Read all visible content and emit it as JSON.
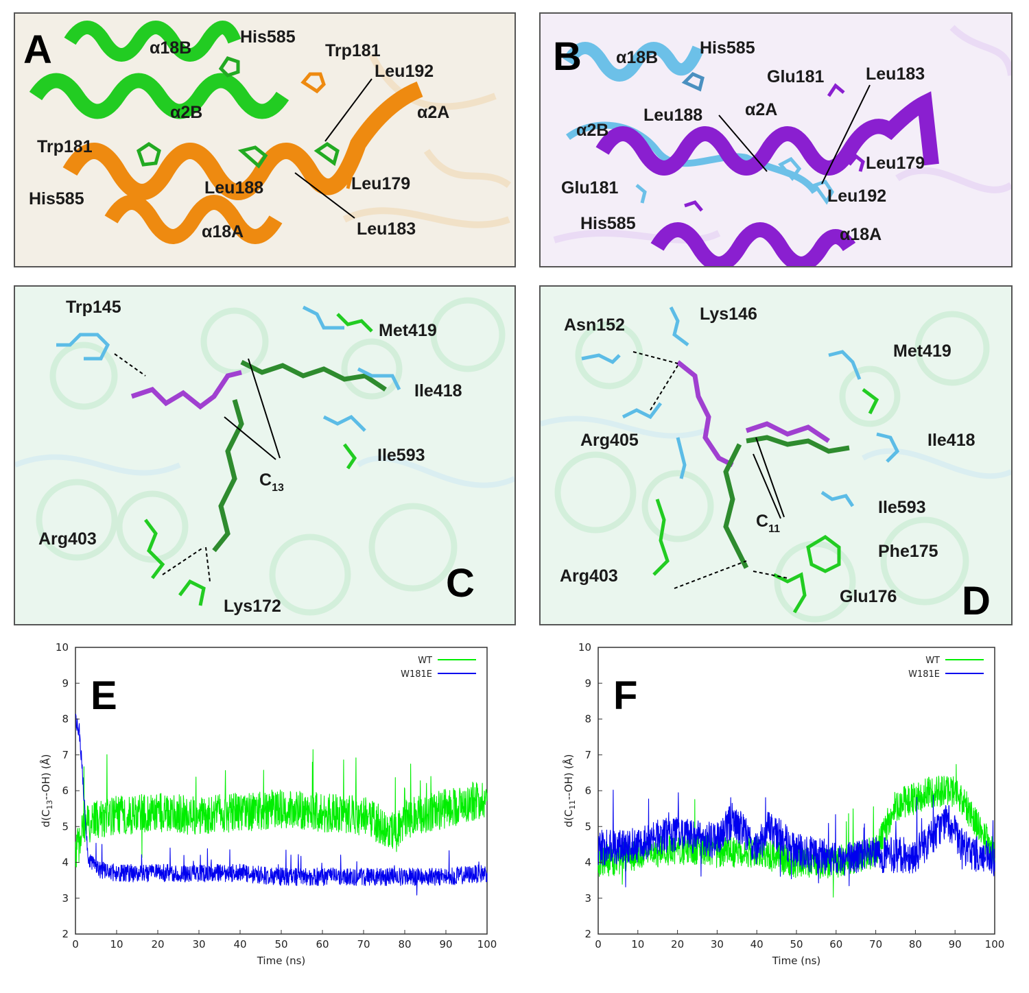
{
  "panels": {
    "A": {
      "letter": "A",
      "labels": [
        "α18B",
        "His585",
        "Trp181",
        "Leu192",
        "α2B",
        "α2A",
        "Trp181",
        "His585",
        "Leu188",
        "Leu179",
        "α18A",
        "Leu183"
      ],
      "colors": {
        "chainB": "#22cc22",
        "chainA": "#ee8a10",
        "bg": "#f3efe6"
      }
    },
    "B": {
      "letter": "B",
      "labels": [
        "α18B",
        "His585",
        "Glu181",
        "Leu183",
        "Leu188",
        "α2A",
        "α2B",
        "Leu179",
        "Glu181",
        "Leu192",
        "His585",
        "α18A"
      ],
      "colors": {
        "chainB": "#6cc0e8",
        "chainA": "#8a1fd0",
        "bg": "#f4eef8"
      }
    },
    "C": {
      "letter": "C",
      "labels": [
        "Trp145",
        "Met419",
        "Ile418",
        "Ile593",
        "Arg403",
        "Lys172"
      ],
      "carbon_label": {
        "main": "C",
        "sub": "13"
      },
      "colors": {
        "bg": "#eaf6ee"
      }
    },
    "D": {
      "letter": "D",
      "labels": [
        "Asn152",
        "Lys146",
        "Met419",
        "Arg405",
        "Ile418",
        "Ile593",
        "Phe175",
        "Arg403",
        "Glu176"
      ],
      "carbon_label": {
        "main": "C",
        "sub": "11"
      },
      "colors": {
        "bg": "#eaf6ee"
      }
    }
  },
  "chart_data": [
    {
      "panel": "E",
      "letter": "E",
      "type": "line",
      "xlabel": "Time (ns)",
      "ylabel": "d(C13--OH) (Å)",
      "xlim": [
        0,
        100
      ],
      "ylim": [
        2,
        10
      ],
      "xticks": [
        0,
        10,
        20,
        30,
        40,
        50,
        60,
        70,
        80,
        90,
        100
      ],
      "yticks": [
        2,
        3,
        4,
        5,
        6,
        7,
        8,
        9,
        10
      ],
      "legend_position": "top-right",
      "series": [
        {
          "name": "WT",
          "color": "#00ee00",
          "profile": [
            [
              0,
              4.2
            ],
            [
              2,
              5.0
            ],
            [
              5,
              5.2
            ],
            [
              10,
              5.3
            ],
            [
              20,
              5.4
            ],
            [
              30,
              5.3
            ],
            [
              40,
              5.4
            ],
            [
              50,
              5.5
            ],
            [
              60,
              5.4
            ],
            [
              70,
              5.3
            ],
            [
              75,
              5.0
            ],
            [
              78,
              4.8
            ],
            [
              80,
              5.2
            ],
            [
              90,
              5.5
            ],
            [
              100,
              5.8
            ]
          ],
          "spread": 0.55
        },
        {
          "name": "W181E",
          "color": "#0000ee",
          "profile": [
            [
              0,
              8.0
            ],
            [
              1,
              7.6
            ],
            [
              2,
              6.0
            ],
            [
              3,
              4.2
            ],
            [
              5,
              3.8
            ],
            [
              10,
              3.7
            ],
            [
              20,
              3.7
            ],
            [
              30,
              3.7
            ],
            [
              40,
              3.7
            ],
            [
              50,
              3.6
            ],
            [
              60,
              3.6
            ],
            [
              70,
              3.6
            ],
            [
              80,
              3.6
            ],
            [
              90,
              3.6
            ],
            [
              100,
              3.7
            ]
          ],
          "spread": 0.25
        }
      ]
    },
    {
      "panel": "F",
      "letter": "F",
      "type": "line",
      "xlabel": "Time (ns)",
      "ylabel": "d(C11--OH) (Å)",
      "xlim": [
        0,
        100
      ],
      "ylim": [
        2,
        10
      ],
      "xticks": [
        0,
        10,
        20,
        30,
        40,
        50,
        60,
        70,
        80,
        90,
        100
      ],
      "yticks": [
        2,
        3,
        4,
        5,
        6,
        7,
        8,
        9,
        10
      ],
      "legend_position": "top-right",
      "series": [
        {
          "name": "WT",
          "color": "#00ee00",
          "profile": [
            [
              0,
              4.0
            ],
            [
              10,
              4.2
            ],
            [
              20,
              4.4
            ],
            [
              30,
              4.3
            ],
            [
              40,
              4.3
            ],
            [
              50,
              4.0
            ],
            [
              60,
              4.0
            ],
            [
              70,
              4.3
            ],
            [
              75,
              5.6
            ],
            [
              80,
              5.8
            ],
            [
              85,
              6.0
            ],
            [
              90,
              6.0
            ],
            [
              95,
              5.2
            ],
            [
              100,
              4.2
            ]
          ],
          "spread": 0.45
        },
        {
          "name": "W181E",
          "color": "#0000ee",
          "profile": [
            [
              0,
              4.4
            ],
            [
              10,
              4.5
            ],
            [
              15,
              4.7
            ],
            [
              20,
              4.8
            ],
            [
              30,
              4.6
            ],
            [
              34,
              5.2
            ],
            [
              40,
              4.4
            ],
            [
              43,
              5.0
            ],
            [
              50,
              4.3
            ],
            [
              60,
              4.1
            ],
            [
              70,
              4.2
            ],
            [
              80,
              4.2
            ],
            [
              88,
              5.2
            ],
            [
              92,
              4.4
            ],
            [
              100,
              4.0
            ]
          ],
          "spread": 0.5
        }
      ]
    }
  ]
}
